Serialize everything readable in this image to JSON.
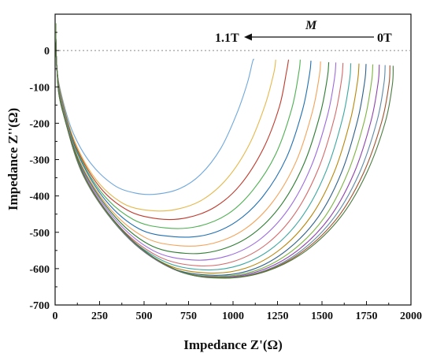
{
  "chart_data": {
    "type": "line",
    "xlabel": "Impedance Z'(Ω)",
    "ylabel": "Impedance Z''(Ω)",
    "xlim": [
      0,
      2000
    ],
    "ylim": [
      -700,
      100
    ],
    "x_ticks": [
      "0",
      "250",
      "500",
      "750",
      "1000",
      "1250",
      "1500",
      "1750",
      "2000"
    ],
    "y_ticks": [
      "0",
      "-100",
      "-200",
      "-300",
      "-400",
      "-500",
      "-600",
      "-700"
    ],
    "zero_reference_line": true,
    "grid": false,
    "legend": "none",
    "annotations": {
      "field_symbol": "M",
      "arrow_start_label": "0T",
      "arrow_end_label": "1.1T"
    },
    "series": [
      {
        "color": "#6fa8dc",
        "values": [
          [
            3,
            75
          ],
          [
            10,
            -50
          ],
          [
            40,
            -130
          ],
          [
            100,
            -225
          ],
          [
            200,
            -310
          ],
          [
            330,
            -370
          ],
          [
            450,
            -392
          ],
          [
            570,
            -395
          ],
          [
            700,
            -380
          ],
          [
            820,
            -340
          ],
          [
            930,
            -270
          ],
          [
            1020,
            -175
          ],
          [
            1080,
            -90
          ],
          [
            1110,
            -30
          ],
          [
            1118,
            -25
          ]
        ]
      },
      {
        "color": "#e6b84c",
        "values": [
          [
            3,
            75
          ],
          [
            10,
            -50
          ],
          [
            40,
            -135
          ],
          [
            110,
            -250
          ],
          [
            230,
            -355
          ],
          [
            380,
            -420
          ],
          [
            530,
            -440
          ],
          [
            680,
            -437
          ],
          [
            830,
            -410
          ],
          [
            970,
            -350
          ],
          [
            1090,
            -260
          ],
          [
            1180,
            -150
          ],
          [
            1230,
            -60
          ],
          [
            1240,
            -25
          ]
        ]
      },
      {
        "color": "#c0392b",
        "values": [
          [
            3,
            75
          ],
          [
            10,
            -50
          ],
          [
            40,
            -138
          ],
          [
            115,
            -262
          ],
          [
            250,
            -375
          ],
          [
            410,
            -440
          ],
          [
            580,
            -463
          ],
          [
            740,
            -460
          ],
          [
            900,
            -430
          ],
          [
            1040,
            -370
          ],
          [
            1170,
            -270
          ],
          [
            1260,
            -155
          ],
          [
            1300,
            -60
          ],
          [
            1312,
            -25
          ]
        ]
      },
      {
        "color": "#4caf50",
        "values": [
          [
            3,
            75
          ],
          [
            10,
            -50
          ],
          [
            40,
            -140
          ],
          [
            120,
            -272
          ],
          [
            265,
            -393
          ],
          [
            440,
            -465
          ],
          [
            620,
            -488
          ],
          [
            800,
            -484
          ],
          [
            970,
            -450
          ],
          [
            1110,
            -385
          ],
          [
            1240,
            -285
          ],
          [
            1330,
            -160
          ],
          [
            1370,
            -60
          ],
          [
            1378,
            -25
          ]
        ]
      },
      {
        "color": "#1f6fb2",
        "values": [
          [
            3,
            75
          ],
          [
            10,
            -50
          ],
          [
            40,
            -142
          ],
          [
            125,
            -282
          ],
          [
            280,
            -410
          ],
          [
            470,
            -490
          ],
          [
            665,
            -512
          ],
          [
            850,
            -507
          ],
          [
            1020,
            -470
          ],
          [
            1170,
            -400
          ],
          [
            1300,
            -295
          ],
          [
            1390,
            -165
          ],
          [
            1430,
            -65
          ],
          [
            1438,
            -28
          ]
        ]
      },
      {
        "color": "#f4a259",
        "values": [
          [
            3,
            75
          ],
          [
            10,
            -50
          ],
          [
            40,
            -144
          ],
          [
            130,
            -295
          ],
          [
            300,
            -430
          ],
          [
            500,
            -513
          ],
          [
            700,
            -537
          ],
          [
            890,
            -530
          ],
          [
            1070,
            -490
          ],
          [
            1225,
            -415
          ],
          [
            1355,
            -305
          ],
          [
            1445,
            -170
          ],
          [
            1485,
            -70
          ],
          [
            1492,
            -30
          ]
        ]
      },
      {
        "color": "#2e7d32",
        "values": [
          [
            3,
            75
          ],
          [
            10,
            -50
          ],
          [
            40,
            -146
          ],
          [
            135,
            -305
          ],
          [
            315,
            -445
          ],
          [
            525,
            -533
          ],
          [
            735,
            -558
          ],
          [
            930,
            -548
          ],
          [
            1110,
            -505
          ],
          [
            1270,
            -425
          ],
          [
            1400,
            -310
          ],
          [
            1490,
            -175
          ],
          [
            1530,
            -75
          ],
          [
            1538,
            -32
          ]
        ]
      },
      {
        "color": "#9c6ade",
        "values": [
          [
            3,
            75
          ],
          [
            10,
            -50
          ],
          [
            40,
            -148
          ],
          [
            140,
            -315
          ],
          [
            330,
            -460
          ],
          [
            550,
            -550
          ],
          [
            770,
            -576
          ],
          [
            970,
            -565
          ],
          [
            1150,
            -520
          ],
          [
            1310,
            -437
          ],
          [
            1440,
            -318
          ],
          [
            1530,
            -180
          ],
          [
            1570,
            -78
          ],
          [
            1578,
            -33
          ]
        ]
      },
      {
        "color": "#d46a6a",
        "values": [
          [
            3,
            75
          ],
          [
            10,
            -50
          ],
          [
            40,
            -150
          ],
          [
            145,
            -325
          ],
          [
            345,
            -475
          ],
          [
            575,
            -565
          ],
          [
            800,
            -592
          ],
          [
            1005,
            -580
          ],
          [
            1190,
            -532
          ],
          [
            1350,
            -447
          ],
          [
            1480,
            -325
          ],
          [
            1570,
            -185
          ],
          [
            1610,
            -80
          ],
          [
            1618,
            -34
          ]
        ]
      },
      {
        "color": "#3ba6a0",
        "values": [
          [
            3,
            75
          ],
          [
            10,
            -50
          ],
          [
            40,
            -152
          ],
          [
            150,
            -333
          ],
          [
            360,
            -487
          ],
          [
            600,
            -577
          ],
          [
            830,
            -603
          ],
          [
            1040,
            -590
          ],
          [
            1230,
            -540
          ],
          [
            1395,
            -452
          ],
          [
            1525,
            -330
          ],
          [
            1615,
            -188
          ],
          [
            1655,
            -82
          ],
          [
            1662,
            -35
          ]
        ]
      },
      {
        "color": "#b8860b",
        "values": [
          [
            3,
            75
          ],
          [
            10,
            -50
          ],
          [
            40,
            -154
          ],
          [
            155,
            -340
          ],
          [
            375,
            -497
          ],
          [
            620,
            -587
          ],
          [
            860,
            -612
          ],
          [
            1075,
            -598
          ],
          [
            1270,
            -545
          ],
          [
            1440,
            -455
          ],
          [
            1570,
            -333
          ],
          [
            1660,
            -190
          ],
          [
            1700,
            -84
          ],
          [
            1708,
            -36
          ]
        ]
      },
      {
        "color": "#2c5f8a",
        "values": [
          [
            3,
            75
          ],
          [
            10,
            -50
          ],
          [
            40,
            -156
          ],
          [
            160,
            -346
          ],
          [
            390,
            -505
          ],
          [
            640,
            -595
          ],
          [
            885,
            -618
          ],
          [
            1105,
            -603
          ],
          [
            1305,
            -548
          ],
          [
            1480,
            -457
          ],
          [
            1610,
            -335
          ],
          [
            1700,
            -192
          ],
          [
            1740,
            -86
          ],
          [
            1748,
            -37
          ]
        ]
      },
      {
        "color": "#7cb342",
        "values": [
          [
            3,
            75
          ],
          [
            10,
            -50
          ],
          [
            40,
            -158
          ],
          [
            165,
            -350
          ],
          [
            402,
            -510
          ],
          [
            658,
            -600
          ],
          [
            905,
            -621
          ],
          [
            1130,
            -605
          ],
          [
            1335,
            -550
          ],
          [
            1515,
            -458
          ],
          [
            1645,
            -336
          ],
          [
            1738,
            -194
          ],
          [
            1778,
            -88
          ],
          [
            1786,
            -38
          ]
        ]
      },
      {
        "color": "#8e44ad",
        "values": [
          [
            3,
            75
          ],
          [
            10,
            -50
          ],
          [
            40,
            -160
          ],
          [
            170,
            -353
          ],
          [
            412,
            -514
          ],
          [
            672,
            -603
          ],
          [
            922,
            -623
          ],
          [
            1150,
            -606
          ],
          [
            1360,
            -551
          ],
          [
            1545,
            -458
          ],
          [
            1680,
            -337
          ],
          [
            1775,
            -195
          ],
          [
            1815,
            -90
          ],
          [
            1822,
            -39
          ]
        ]
      },
      {
        "color": "#5d8aa8",
        "values": [
          [
            3,
            75
          ],
          [
            10,
            -50
          ],
          [
            40,
            -161
          ],
          [
            174,
            -356
          ],
          [
            420,
            -517
          ],
          [
            684,
            -605
          ],
          [
            936,
            -624
          ],
          [
            1168,
            -607
          ],
          [
            1382,
            -551
          ],
          [
            1570,
            -458
          ],
          [
            1710,
            -337
          ],
          [
            1808,
            -196
          ],
          [
            1848,
            -92
          ],
          [
            1855,
            -40
          ]
        ]
      },
      {
        "color": "#a0522d",
        "values": [
          [
            3,
            75
          ],
          [
            10,
            -50
          ],
          [
            40,
            -162
          ],
          [
            177,
            -358
          ],
          [
            426,
            -519
          ],
          [
            693,
            -606
          ],
          [
            946,
            -625
          ],
          [
            1180,
            -607
          ],
          [
            1397,
            -551
          ],
          [
            1590,
            -458
          ],
          [
            1733,
            -337
          ],
          [
            1835,
            -197
          ],
          [
            1876,
            -94
          ],
          [
            1882,
            -41
          ]
        ]
      },
      {
        "color": "#4a7c3f",
        "values": [
          [
            3,
            75
          ],
          [
            10,
            -50
          ],
          [
            40,
            -163
          ],
          [
            180,
            -360
          ],
          [
            430,
            -520
          ],
          [
            700,
            -607
          ],
          [
            955,
            -626
          ],
          [
            1190,
            -607
          ],
          [
            1410,
            -551
          ],
          [
            1605,
            -458
          ],
          [
            1750,
            -338
          ],
          [
            1855,
            -198
          ],
          [
            1895,
            -95
          ],
          [
            1900,
            -42
          ]
        ]
      }
    ]
  }
}
